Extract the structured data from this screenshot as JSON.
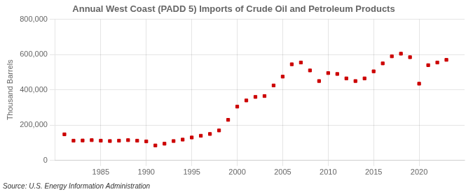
{
  "chart_data": {
    "type": "scatter",
    "title": "Annual West Coast (PADD 5) Imports of Crude Oil and Petroleum Products",
    "ylabel": "Thousand Barrels",
    "source": "Source: U.S. Energy Information Administration",
    "color": "#cc0000",
    "marker": "square",
    "grid": true,
    "xlim": [
      1980,
      2025
    ],
    "xticks": [
      1985,
      1990,
      1995,
      2000,
      2005,
      2010,
      2015,
      2020
    ],
    "ylim": [
      0,
      800000
    ],
    "yticks": [
      0,
      {
        "value": 200000,
        "label": "200,000"
      },
      {
        "value": 400000,
        "label": "400,000"
      },
      {
        "value": 600000,
        "label": "600,000"
      },
      {
        "value": 800000,
        "label": "800,000"
      }
    ],
    "x": [
      1981,
      1982,
      1983,
      1984,
      1985,
      1986,
      1987,
      1988,
      1989,
      1990,
      1991,
      1992,
      1993,
      1994,
      1995,
      1996,
      1997,
      1998,
      1999,
      2000,
      2001,
      2002,
      2003,
      2004,
      2005,
      2006,
      2007,
      2008,
      2009,
      2010,
      2011,
      2012,
      2013,
      2014,
      2015,
      2016,
      2017,
      2018,
      2019,
      2020,
      2021,
      2022,
      2023
    ],
    "values": [
      148000,
      112000,
      113000,
      115000,
      112000,
      110000,
      112000,
      115000,
      112000,
      108000,
      85000,
      95000,
      110000,
      118000,
      130000,
      140000,
      150000,
      170000,
      230000,
      305000,
      340000,
      360000,
      365000,
      425000,
      475000,
      545000,
      555000,
      510000,
      450000,
      495000,
      490000,
      465000,
      450000,
      465000,
      505000,
      550000,
      590000,
      605000,
      585000,
      435000,
      540000,
      555000,
      570000
    ]
  }
}
